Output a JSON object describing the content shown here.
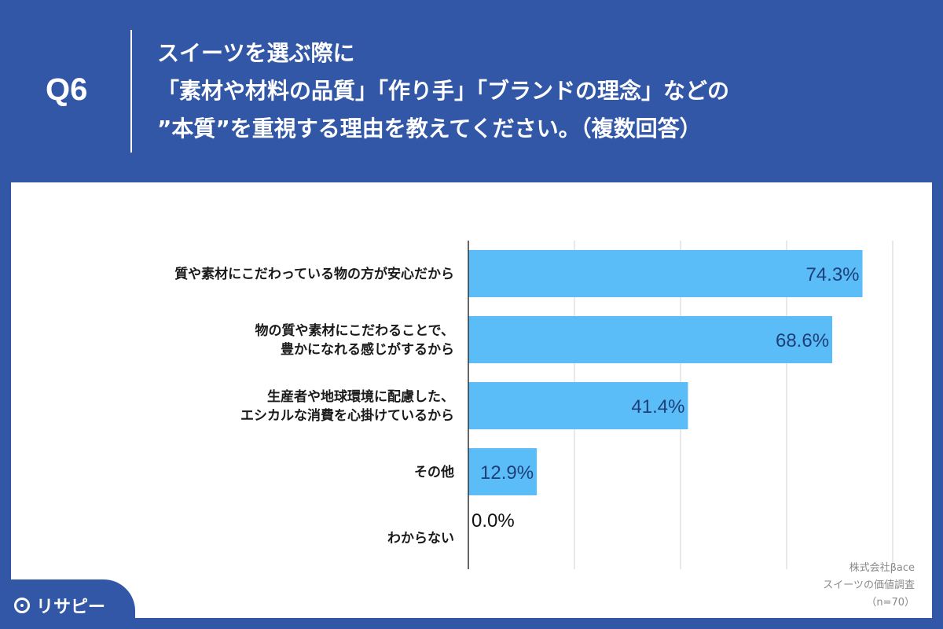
{
  "header": {
    "q_number": "Q6",
    "question_lines": [
      "スイーツを選ぶ際に",
      "「素材や材料の品質」「作り手」「ブランドの理念」などの",
      "”本質”を重視する理由を教えてください。（複数回答）"
    ]
  },
  "chart_data": {
    "type": "bar",
    "orientation": "horizontal",
    "categories": [
      [
        "質や素材にこだわっている物の方が安心だから"
      ],
      [
        "物の質や素材にこだわることで、",
        "豊かになれる感じがするから"
      ],
      [
        "生産者や地球環境に配慮した、",
        "エシカルな消費を心掛けているから"
      ],
      [
        "その他"
      ],
      [
        "わからない"
      ]
    ],
    "values": [
      74.3,
      68.6,
      41.4,
      12.9,
      0.0
    ],
    "value_labels": [
      "74.3%",
      "68.6%",
      "41.4%",
      "12.9%",
      "0.0%"
    ],
    "xlim": [
      0,
      80
    ],
    "grid": true,
    "bar_color": "#5bbdf7",
    "label_color": "#1f3f7a",
    "outside_label_color": "#111111"
  },
  "source": {
    "lines": [
      "株式会社βace",
      "スイーツの価値調査",
      "（n=70）"
    ]
  },
  "logo": {
    "text": "リサピー"
  },
  "colors": {
    "header_bg": "#3257a6",
    "panel_bg": "#ffffff",
    "grid": "#d0d0d0"
  }
}
